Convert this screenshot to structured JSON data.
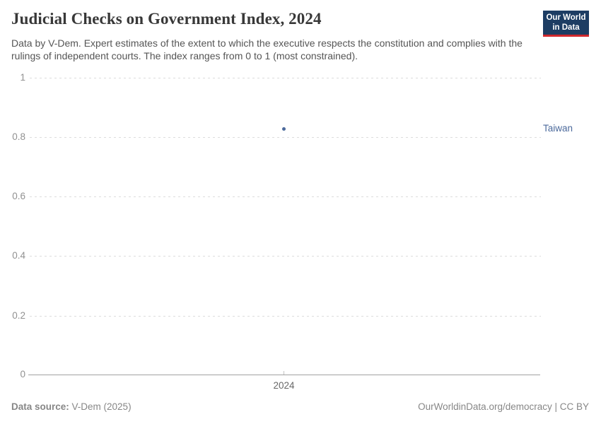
{
  "header": {
    "title": "Judicial Checks on Government Index, 2024",
    "subtitle": "Data by V-Dem. Expert estimates of the extent to which the executive respects the constitution and complies with the rulings of independent courts. The index ranges from 0 to 1 (most constrained).",
    "logo": {
      "line1": "Our World",
      "line2": "in Data",
      "bg_color": "#1d3d63",
      "accent_color": "#d0282d"
    }
  },
  "chart_data": {
    "type": "scatter",
    "title": "Judicial Checks on Government Index, 2024",
    "x": [
      2024
    ],
    "series": [
      {
        "name": "Taiwan",
        "values": [
          0.83
        ],
        "color": "#4c6a9c"
      }
    ],
    "xlabel": "",
    "ylabel": "",
    "ylim": [
      0,
      1
    ],
    "yticks": [
      "1",
      "0.8",
      "0.6",
      "0.4",
      "0.2",
      "0"
    ],
    "xticks": [
      "2024"
    ],
    "grid": "horizontal-dashed",
    "legend_position": "entity label right of plot"
  },
  "footer": {
    "source_label": "Data source:",
    "source_value": " V-Dem (2025)",
    "credit": "OurWorldinData.org/democracy | CC BY"
  }
}
